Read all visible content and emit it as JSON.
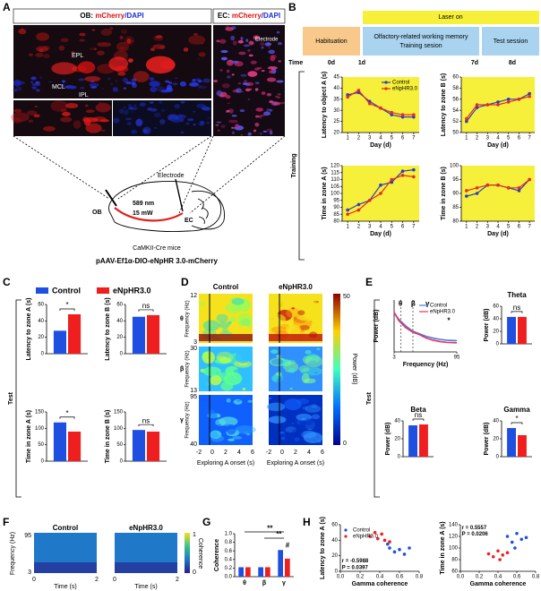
{
  "labels": [
    "A",
    "B",
    "C",
    "D",
    "E",
    "F",
    "G",
    "H"
  ],
  "a": {
    "ob_title": [
      "OB: ",
      "mCherry",
      "/DAPI"
    ],
    "ec_title": [
      "EC: ",
      "mCherry",
      "/DAPI"
    ],
    "layers": [
      "EPL",
      "MCL",
      "IPL"
    ],
    "image_electrode": "Electrode",
    "laser": "589 nm",
    "power": "15 mW",
    "ob": "OB",
    "ec": "EC",
    "electrode": "Electrode",
    "mice": "CaMKII-Cre mice",
    "virus": "pAAV-Ef1α-DIO-eNpHR 3.0-mCherry"
  },
  "b_timeline": {
    "laser": "Laser on",
    "habituation": "Habituation",
    "training": [
      "Olfactory-related working memory",
      "Training sesion"
    ],
    "test": "Test session",
    "time": "Time",
    "days": [
      "0d",
      "1d",
      "7d",
      "8d"
    ],
    "side": "Training"
  },
  "c": {
    "side": "Test"
  },
  "e": {
    "side": "Test"
  },
  "d": {
    "titles": [
      "Control",
      "eNpHR3.0"
    ],
    "bands": [
      "θ",
      "β",
      "γ"
    ],
    "ylabel": "Frequency (Hz)",
    "band_ticks": [
      [
        12,
        3
      ],
      [
        30,
        13
      ],
      [
        95,
        40
      ]
    ],
    "xticks": [
      -2,
      0,
      2,
      4,
      6
    ],
    "xlabel": "Exploring A onset (s)",
    "colorbar": [
      50,
      0
    ],
    "colorbar_label": "Power (dB)"
  },
  "f": {
    "titles": [
      "Control",
      "eNpHR3.0"
    ],
    "ylabel": "Frequency (Hz)",
    "yticks": [
      95,
      3
    ],
    "xticks": [
      0,
      2
    ],
    "xlabel": "Time (s)",
    "colorbar": [
      1,
      0
    ],
    "colorbar_label": "Coherence"
  },
  "chart_data": [
    {
      "type": "line",
      "ylabel": "Latency to object A (s)",
      "xlabel": "Day (d)",
      "background": "#f7f03a",
      "legend": "upper right",
      "x": [
        1,
        2,
        3,
        4,
        5,
        6,
        7
      ],
      "xlim": [
        0.5,
        7.5
      ],
      "xticks": [
        1,
        2,
        3,
        4,
        5,
        6,
        7
      ],
      "ylim": [
        20,
        45
      ],
      "yticks": [
        20,
        25,
        30,
        35,
        40,
        45
      ],
      "series": [
        {
          "name": "Control",
          "color": "#2b3fbf",
          "values": [
            37,
            38,
            34,
            31,
            28,
            27,
            27
          ]
        },
        {
          "name": "eNpHR3.0",
          "color": "#e52a2a",
          "values": [
            36,
            39,
            33,
            31,
            29,
            28,
            28
          ]
        }
      ]
    },
    {
      "type": "line",
      "ylabel": "Latency to zone B (s)",
      "xlabel": "Day (d)",
      "background": "#f7f03a",
      "x": [
        1,
        2,
        3,
        4,
        5,
        6,
        7
      ],
      "xlim": [
        0.5,
        7.5
      ],
      "xticks": [
        1,
        2,
        3,
        4,
        5,
        6,
        7
      ],
      "ylim": [
        50,
        60
      ],
      "yticks": [
        50,
        52,
        54,
        56,
        58,
        60
      ],
      "series": [
        {
          "name": "Control",
          "color": "#2b3fbf",
          "values": [
            52,
            54.5,
            55,
            55.5,
            56,
            56,
            57
          ]
        },
        {
          "name": "eNpHR3.0",
          "color": "#e52a2a",
          "values": [
            52.5,
            55,
            55,
            55,
            55.5,
            56,
            56.5
          ]
        }
      ]
    },
    {
      "type": "line",
      "ylabel": "Time in zone A (s)",
      "xlabel": "Day (d)",
      "background": "#f7f03a",
      "x": [
        1,
        2,
        3,
        4,
        5,
        6,
        7
      ],
      "xlim": [
        0.5,
        7.5
      ],
      "xticks": [
        1,
        2,
        3,
        4,
        5,
        6,
        7
      ],
      "ylim": [
        80,
        120
      ],
      "yticks": [
        80,
        85,
        90,
        95,
        100,
        105,
        110,
        115,
        120
      ],
      "series": [
        {
          "name": "Control",
          "color": "#2b3fbf",
          "values": [
            88,
            92,
            95,
            106,
            108,
            116,
            117
          ]
        },
        {
          "name": "eNpHR3.0",
          "color": "#e52a2a",
          "values": [
            85,
            88,
            95,
            100,
            110,
            113,
            112
          ]
        }
      ]
    },
    {
      "type": "line",
      "ylabel": "Time in zone B (s)",
      "xlabel": "Day (d)",
      "background": "#f7f03a",
      "x": [
        1,
        2,
        3,
        4,
        5,
        6,
        7
      ],
      "xlim": [
        0.5,
        7.5
      ],
      "xticks": [
        1,
        2,
        3,
        4,
        5,
        6,
        7
      ],
      "ylim": [
        80,
        100
      ],
      "yticks": [
        80,
        85,
        90,
        95,
        100
      ],
      "series": [
        {
          "name": "Control",
          "color": "#2b3fbf",
          "values": [
            89,
            90,
            93,
            93,
            92,
            91,
            95
          ]
        },
        {
          "name": "eNpHR3.0",
          "color": "#e52a2a",
          "values": [
            91,
            92,
            93,
            93,
            92,
            92,
            95
          ]
        }
      ]
    },
    {
      "type": "bar",
      "ylabel": "Latency to zone A (s)",
      "legend": "top",
      "sig": "*",
      "categories": [
        null
      ],
      "ylim": [
        0,
        60
      ],
      "yticks": [
        0,
        20,
        40,
        60
      ],
      "series": [
        {
          "name": "Control",
          "color": "#1f4fe0",
          "values": [
            28
          ]
        },
        {
          "name": "eNpHR3.0",
          "color": "#f01f1f",
          "values": [
            48
          ]
        }
      ]
    },
    {
      "type": "bar",
      "ylabel": "Latency to zone B (s)",
      "sig": "ns",
      "categories": [
        null
      ],
      "ylim": [
        0,
        60
      ],
      "yticks": [
        0,
        20,
        40,
        60
      ],
      "series": [
        {
          "name": "Control",
          "color": "#1f4fe0",
          "values": [
            45
          ]
        },
        {
          "name": "eNpHR3.0",
          "color": "#f01f1f",
          "values": [
            47
          ]
        }
      ]
    },
    {
      "type": "bar",
      "ylabel": "Time in zone A (s)",
      "sig": "*",
      "categories": [
        null
      ],
      "ylim": [
        0,
        150
      ],
      "yticks": [
        0,
        50,
        100,
        150
      ],
      "series": [
        {
          "name": "Control",
          "color": "#1f4fe0",
          "values": [
            118
          ]
        },
        {
          "name": "eNpHR3.0",
          "color": "#f01f1f",
          "values": [
            90
          ]
        }
      ]
    },
    {
      "type": "bar",
      "ylabel": "Time in zone B (s)",
      "sig": "ns",
      "categories": [
        null
      ],
      "ylim": [
        0,
        150
      ],
      "yticks": [
        0,
        50,
        100,
        150
      ],
      "series": [
        {
          "name": "Control",
          "color": "#1f4fe0",
          "values": [
            95
          ]
        },
        {
          "name": "eNpHR3.0",
          "color": "#f01f1f",
          "values": [
            90
          ]
        }
      ]
    },
    {
      "type": "line",
      "ylabel": "Power (dB)",
      "xlabel": "Frequency (Hz)",
      "legend": "upper right",
      "annotations": [
        "θ",
        "β",
        "γ",
        "*"
      ],
      "x": [
        3,
        10,
        20,
        30,
        40,
        50,
        60,
        70,
        80,
        95
      ],
      "xlim": [
        3,
        95
      ],
      "xticks": [
        3,
        95
      ],
      "ylim": [
        0,
        12
      ],
      "series": [
        {
          "name": "Control",
          "color": "#4a78e0",
          "values": [
            9,
            7.5,
            6,
            4.8,
            4.2,
            3.6,
            3.2,
            2.9,
            2.7,
            2.6
          ]
        },
        {
          "name": "eNpHR3.0",
          "color": "#e8325a",
          "values": [
            9.2,
            7.2,
            5.6,
            4.6,
            4,
            3.2,
            2.7,
            2.4,
            2.2,
            2.1
          ]
        }
      ]
    },
    {
      "type": "bar",
      "title": "Theta",
      "ylabel": "Power (dB)",
      "sig": "ns",
      "categories": [
        null
      ],
      "ylim": [
        0,
        60
      ],
      "yticks": [
        0,
        20,
        40,
        60
      ],
      "series": [
        {
          "name": "Control",
          "color": "#1f4fe0",
          "values": [
            43
          ]
        },
        {
          "name": "eNpHR3.0",
          "color": "#f01f1f",
          "values": [
            43
          ]
        }
      ]
    },
    {
      "type": "bar",
      "title": "Beta",
      "ylabel": "Power (dB)",
      "sig": "ns",
      "categories": [
        null
      ],
      "ylim": [
        0,
        40
      ],
      "yticks": [
        0,
        20,
        40
      ],
      "series": [
        {
          "name": "Control",
          "color": "#1f4fe0",
          "values": [
            35
          ]
        },
        {
          "name": "eNpHR3.0",
          "color": "#f01f1f",
          "values": [
            36
          ]
        }
      ]
    },
    {
      "type": "bar",
      "title": "Gamma",
      "ylabel": "Power (dB)",
      "sig": "*",
      "categories": [
        null
      ],
      "ylim": [
        0,
        40
      ],
      "yticks": [
        0,
        20,
        40
      ],
      "series": [
        {
          "name": "Control",
          "color": "#1f4fe0",
          "values": [
            32
          ]
        },
        {
          "name": "eNpHR3.0",
          "color": "#f01f1f",
          "values": [
            24
          ]
        }
      ]
    },
    {
      "type": "bar",
      "ylabel": "Coherence",
      "annotations": [
        "**",
        "**",
        "#"
      ],
      "categories": [
        "θ",
        "β",
        "γ"
      ],
      "ylim": [
        0,
        1
      ],
      "yticks": [
        {
          "value": 0,
          "label": "0.0"
        },
        0.2,
        0.4,
        0.6,
        0.8,
        {
          "value": 1,
          "label": "1.0"
        }
      ],
      "series": [
        {
          "name": "Control",
          "color": "#1f4fe0",
          "values": [
            0.22,
            0.22,
            0.62
          ]
        },
        {
          "name": "eNpHR3.0",
          "color": "#f01f1f",
          "values": [
            0.22,
            0.22,
            0.42
          ]
        }
      ]
    },
    {
      "type": "scatter",
      "ylabel": "Latency to zone A (s)",
      "xlabel": "Gamma coherence",
      "legend": "upper left",
      "annotations": [
        "r = -0.5988",
        "P = 0.0397"
      ],
      "xlim": [
        0,
        0.8
      ],
      "xticks": [
        {
          "value": 0,
          "label": "0.0"
        },
        0.2,
        0.4,
        0.6,
        0.8
      ],
      "ylim": [
        0,
        60
      ],
      "yticks": [
        0,
        20,
        40,
        60
      ],
      "series": [
        {
          "name": "Control",
          "color": "#1f4fe0",
          "x": [
            0.48,
            0.5,
            0.55,
            0.6,
            0.65,
            0.7
          ],
          "values": [
            35,
            30,
            25,
            28,
            22,
            30
          ]
        },
        {
          "name": "eNpHR3.0",
          "color": "#f01f1f",
          "x": [
            0.3,
            0.35,
            0.38,
            0.42,
            0.45,
            0.5
          ],
          "values": [
            45,
            50,
            42,
            48,
            40,
            38
          ]
        }
      ]
    },
    {
      "type": "scatter",
      "ylabel": "Time in zone A (s)",
      "xlabel": "Gamma coherence",
      "annotations": [
        "r = 0.5557",
        "P = 0.0206"
      ],
      "xlim": [
        0,
        0.8
      ],
      "xticks": [
        {
          "value": 0,
          "label": "0.0"
        },
        0.2,
        0.4,
        0.6,
        0.8
      ],
      "ylim": [
        60,
        140
      ],
      "yticks": [
        60,
        80,
        100,
        120,
        140
      ],
      "series": [
        {
          "name": "Control",
          "color": "#1f4fe0",
          "x": [
            0.5,
            0.55,
            0.58,
            0.6,
            0.65,
            0.7
          ],
          "values": [
            120,
            110,
            100,
            125,
            115,
            118
          ]
        },
        {
          "name": "eNpHR3.0",
          "color": "#f01f1f",
          "x": [
            0.3,
            0.35,
            0.4,
            0.42,
            0.45,
            0.5
          ],
          "values": [
            90,
            85,
            95,
            80,
            88,
            92
          ]
        }
      ]
    }
  ]
}
